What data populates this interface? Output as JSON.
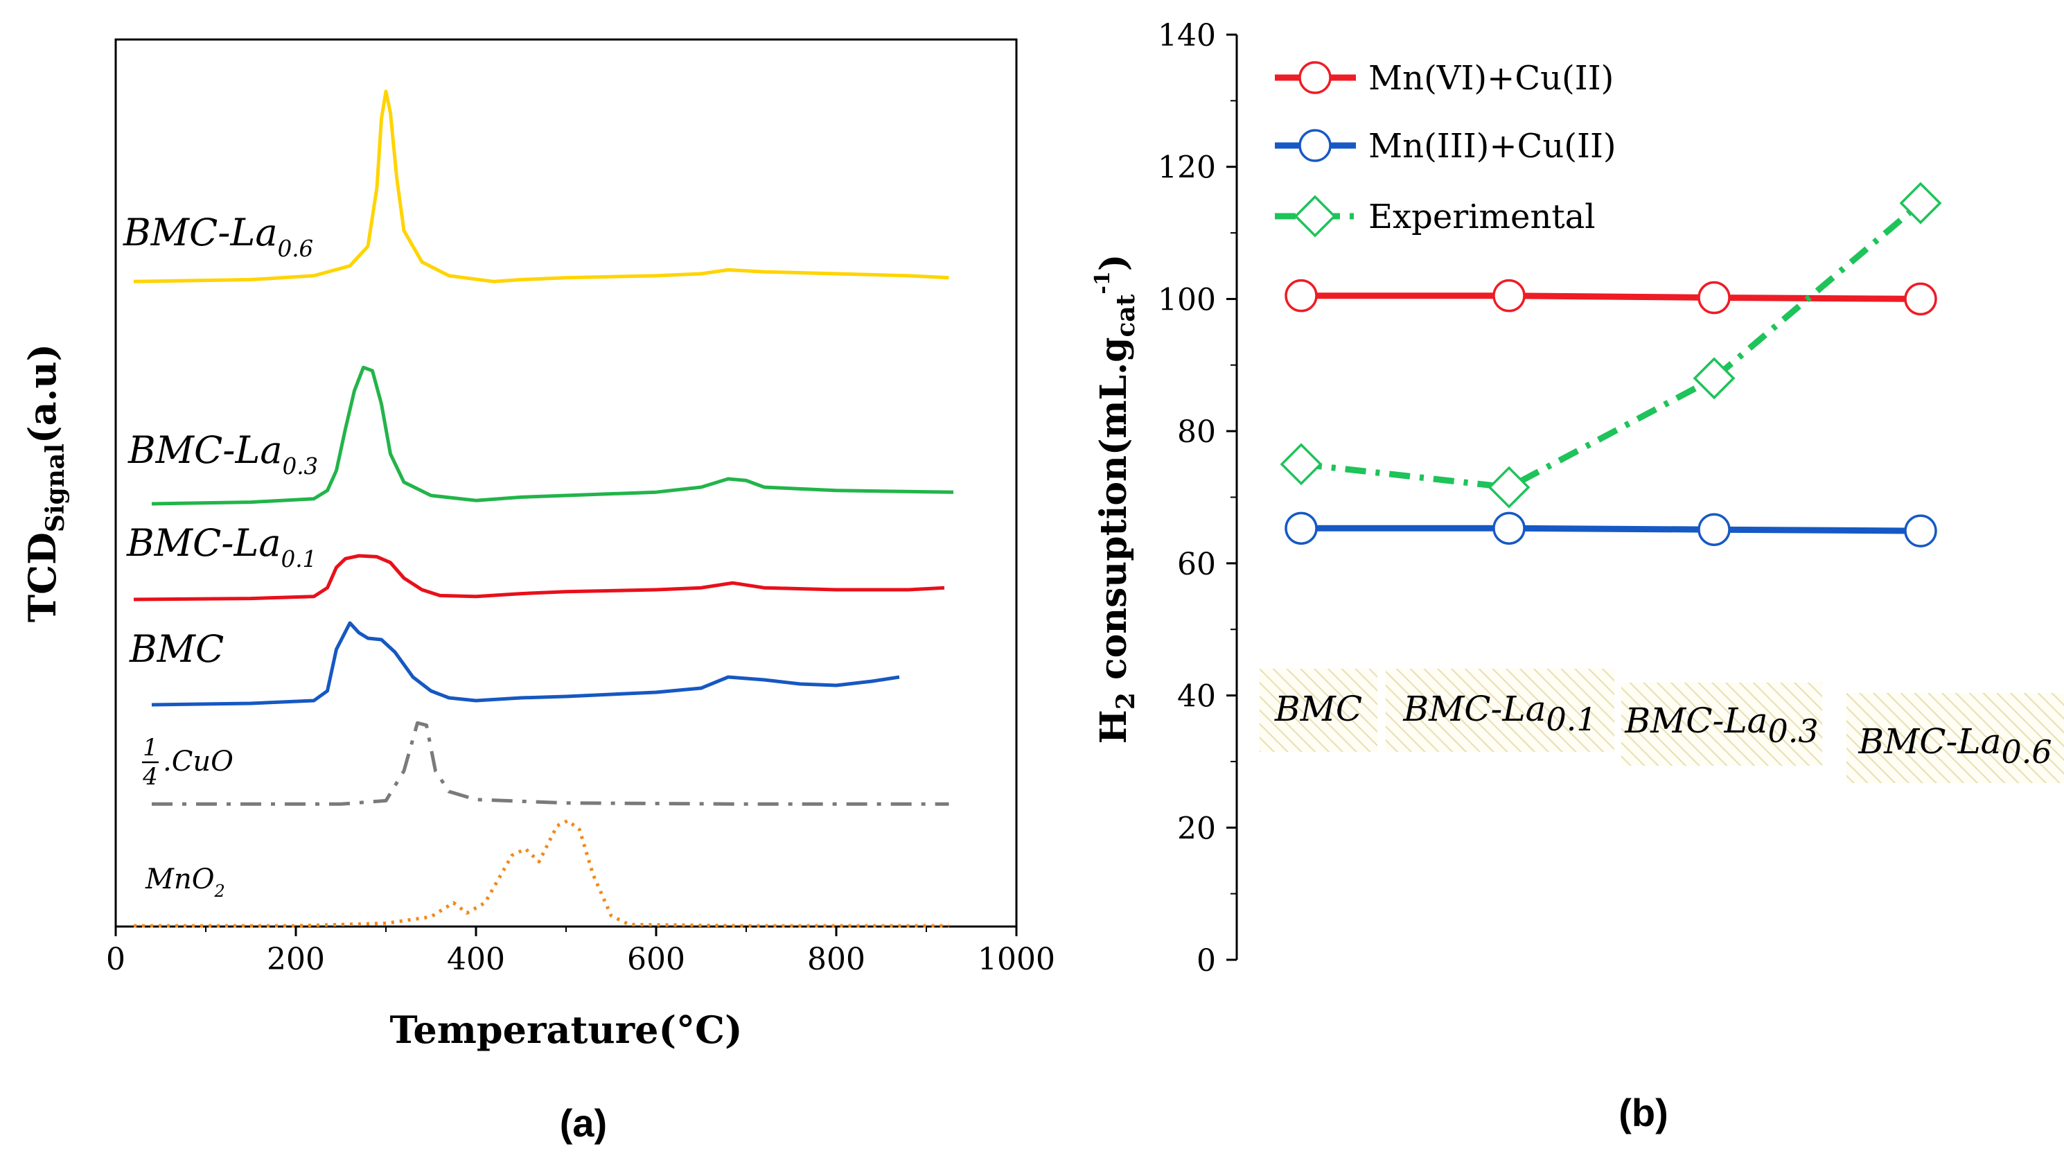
{
  "figure": {
    "panel_a_label": "(a)",
    "panel_b_label": "(b)"
  },
  "chart_data": [
    {
      "type": "line",
      "panel": "(a)",
      "xlabel": "Temperature(°C)",
      "ylabel": "TCD",
      "ylabel_sub": "Signal",
      "ylabel_unit": "(a.u)",
      "xlim": [
        0,
        1000
      ],
      "xticks": [
        "0",
        "200",
        "400",
        "600",
        "800",
        "1000"
      ],
      "series": [
        {
          "name": "BMC-La0.6",
          "label_main": "BMC-La",
          "label_sub": "0.6",
          "color": "#ffd400",
          "dash": "solid",
          "points": [
            [
              20,
              0.02
            ],
            [
              150,
              0.03
            ],
            [
              220,
              0.05
            ],
            [
              260,
              0.1
            ],
            [
              280,
              0.2
            ],
            [
              290,
              0.5
            ],
            [
              295,
              0.85
            ],
            [
              300,
              0.99
            ],
            [
              305,
              0.88
            ],
            [
              312,
              0.55
            ],
            [
              320,
              0.28
            ],
            [
              340,
              0.12
            ],
            [
              370,
              0.05
            ],
            [
              420,
              0.02
            ],
            [
              450,
              0.03
            ],
            [
              500,
              0.04
            ],
            [
              600,
              0.05
            ],
            [
              650,
              0.06
            ],
            [
              680,
              0.08
            ],
            [
              720,
              0.07
            ],
            [
              800,
              0.06
            ],
            [
              880,
              0.05
            ],
            [
              925,
              0.04
            ]
          ]
        },
        {
          "name": "BMC-La0.3",
          "label_main": "BMC-La",
          "label_sub": "0.3",
          "color": "#22b44a",
          "dash": "solid",
          "points": [
            [
              40,
              0.0
            ],
            [
              150,
              0.01
            ],
            [
              220,
              0.03
            ],
            [
              235,
              0.08
            ],
            [
              245,
              0.2
            ],
            [
              255,
              0.45
            ],
            [
              265,
              0.68
            ],
            [
              275,
              0.82
            ],
            [
              285,
              0.8
            ],
            [
              295,
              0.6
            ],
            [
              305,
              0.3
            ],
            [
              320,
              0.13
            ],
            [
              350,
              0.05
            ],
            [
              400,
              0.02
            ],
            [
              450,
              0.04
            ],
            [
              500,
              0.05
            ],
            [
              600,
              0.07
            ],
            [
              650,
              0.1
            ],
            [
              680,
              0.15
            ],
            [
              700,
              0.14
            ],
            [
              720,
              0.1
            ],
            [
              800,
              0.08
            ],
            [
              930,
              0.07
            ]
          ]
        },
        {
          "name": "BMC-La0.1",
          "label_main": "BMC-La",
          "label_sub": "0.1",
          "color": "#e8101a",
          "dash": "solid",
          "points": [
            [
              20,
              0.0
            ],
            [
              150,
              0.01
            ],
            [
              220,
              0.03
            ],
            [
              235,
              0.12
            ],
            [
              245,
              0.33
            ],
            [
              255,
              0.42
            ],
            [
              270,
              0.45
            ],
            [
              290,
              0.44
            ],
            [
              305,
              0.38
            ],
            [
              320,
              0.22
            ],
            [
              340,
              0.1
            ],
            [
              360,
              0.04
            ],
            [
              400,
              0.03
            ],
            [
              450,
              0.06
            ],
            [
              500,
              0.08
            ],
            [
              600,
              0.1
            ],
            [
              650,
              0.12
            ],
            [
              685,
              0.17
            ],
            [
              720,
              0.12
            ],
            [
              800,
              0.1
            ],
            [
              880,
              0.1
            ],
            [
              920,
              0.12
            ]
          ]
        },
        {
          "name": "BMC",
          "label_main": "BMC",
          "label_sub": "",
          "color": "#1658c2",
          "dash": "solid",
          "points": [
            [
              40,
              0.0
            ],
            [
              150,
              0.01
            ],
            [
              220,
              0.03
            ],
            [
              235,
              0.1
            ],
            [
              245,
              0.4
            ],
            [
              260,
              0.59
            ],
            [
              270,
              0.52
            ],
            [
              280,
              0.48
            ],
            [
              295,
              0.47
            ],
            [
              310,
              0.38
            ],
            [
              330,
              0.2
            ],
            [
              350,
              0.1
            ],
            [
              370,
              0.05
            ],
            [
              400,
              0.03
            ],
            [
              450,
              0.05
            ],
            [
              500,
              0.06
            ],
            [
              600,
              0.09
            ],
            [
              650,
              0.12
            ],
            [
              680,
              0.2
            ],
            [
              720,
              0.18
            ],
            [
              760,
              0.15
            ],
            [
              800,
              0.14
            ],
            [
              840,
              0.17
            ],
            [
              870,
              0.2
            ]
          ]
        },
        {
          "name": "1/4.CuO",
          "label_main": ".CuO",
          "label_sub": "",
          "label_frac_num": "1",
          "label_frac_den": "4",
          "color": "#7a7a7a",
          "dash": "dashdot",
          "points": [
            [
              40,
              0.01
            ],
            [
              150,
              0.01
            ],
            [
              250,
              0.01
            ],
            [
              300,
              0.04
            ],
            [
              320,
              0.3
            ],
            [
              335,
              0.72
            ],
            [
              345,
              0.7
            ],
            [
              355,
              0.3
            ],
            [
              370,
              0.12
            ],
            [
              400,
              0.05
            ],
            [
              500,
              0.02
            ],
            [
              700,
              0.01
            ],
            [
              925,
              0.01
            ]
          ]
        },
        {
          "name": "MnO2",
          "label_main": "MnO",
          "label_sub": "2",
          "color": "#f08a1c",
          "dash": "dotted",
          "points": [
            [
              20,
              0.0
            ],
            [
              200,
              0.0
            ],
            [
              300,
              0.02
            ],
            [
              350,
              0.07
            ],
            [
              375,
              0.18
            ],
            [
              390,
              0.1
            ],
            [
              410,
              0.18
            ],
            [
              440,
              0.55
            ],
            [
              455,
              0.6
            ],
            [
              470,
              0.5
            ],
            [
              490,
              0.78
            ],
            [
              502,
              0.82
            ],
            [
              515,
              0.75
            ],
            [
              530,
              0.4
            ],
            [
              550,
              0.08
            ],
            [
              570,
              0.01
            ],
            [
              700,
              0.0
            ],
            [
              925,
              0.0
            ]
          ]
        }
      ]
    },
    {
      "type": "line",
      "panel": "(b)",
      "ylabel_main": "H",
      "ylabel_sub": "2",
      "ylabel_rest": " consuption(mL.g",
      "ylabel_sub2": "cat",
      "ylabel_sup": "-1",
      "ylabel_end": ")",
      "ylim": [
        0,
        140
      ],
      "yticks": [
        "0",
        "20",
        "40",
        "60",
        "80",
        "100",
        "120",
        "140"
      ],
      "categories": [
        {
          "main": "BMC",
          "sub": ""
        },
        {
          "main": "BMC-La",
          "sub": "0.1"
        },
        {
          "main": "BMC-La",
          "sub": "0.3"
        },
        {
          "main": "BMC-La",
          "sub": "0.6"
        }
      ],
      "legend_position": "top-left",
      "series": [
        {
          "name": "Mn(VI)+Cu(II)",
          "color": "#ee1c25",
          "marker": "circle",
          "dash": "solid",
          "values": [
            100.5,
            100.5,
            100.2,
            100.0
          ]
        },
        {
          "name": "Mn(III)+Cu(II)",
          "color": "#1659c4",
          "marker": "circle",
          "dash": "solid",
          "values": [
            65.3,
            65.3,
            65.1,
            64.9
          ]
        },
        {
          "name": "Experimental",
          "color": "#1ec35a",
          "marker": "diamond",
          "dash": "dashdot",
          "values": [
            75.0,
            71.5,
            88.0,
            114.5
          ]
        }
      ]
    }
  ]
}
